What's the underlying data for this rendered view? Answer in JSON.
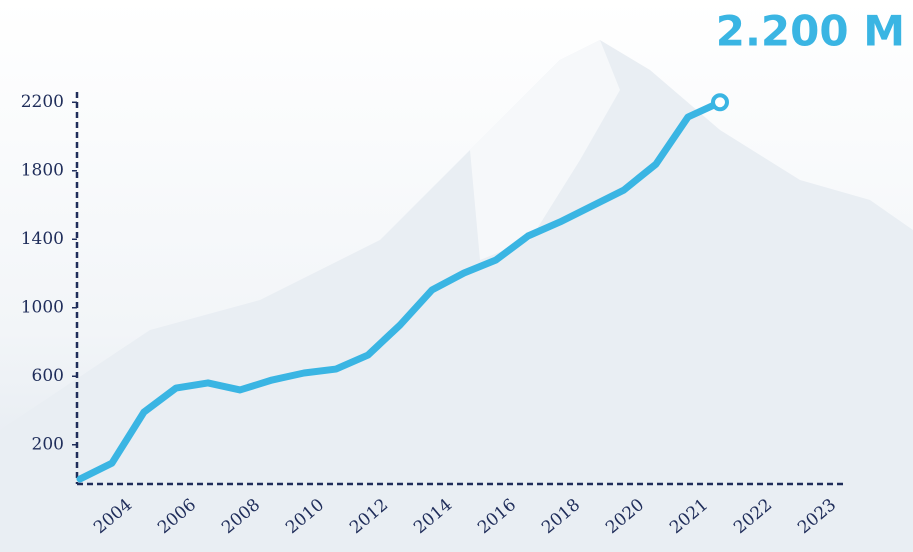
{
  "chart_data": {
    "type": "line",
    "headline": "2.200 M",
    "categories": [
      null,
      "2004",
      null,
      "2006",
      null,
      "2008",
      null,
      "2010",
      null,
      "2012",
      null,
      "2014",
      null,
      "2016",
      null,
      "2018",
      null,
      "2020",
      null,
      "2021",
      null,
      "2022",
      null,
      "2023"
    ],
    "values": [
      0,
      93,
      391,
      531,
      561,
      520,
      578,
      619,
      642,
      724,
      899,
      1104,
      1203,
      1279,
      1419,
      1501,
      1594,
      1688,
      1839,
      2114,
      2200,
      null,
      null,
      null
    ],
    "color": "#3ab5e3",
    "ylim": [
      0,
      2260
    ],
    "yticks": [
      200,
      600,
      1000,
      1400,
      1800,
      2200
    ],
    "grid": false
  }
}
